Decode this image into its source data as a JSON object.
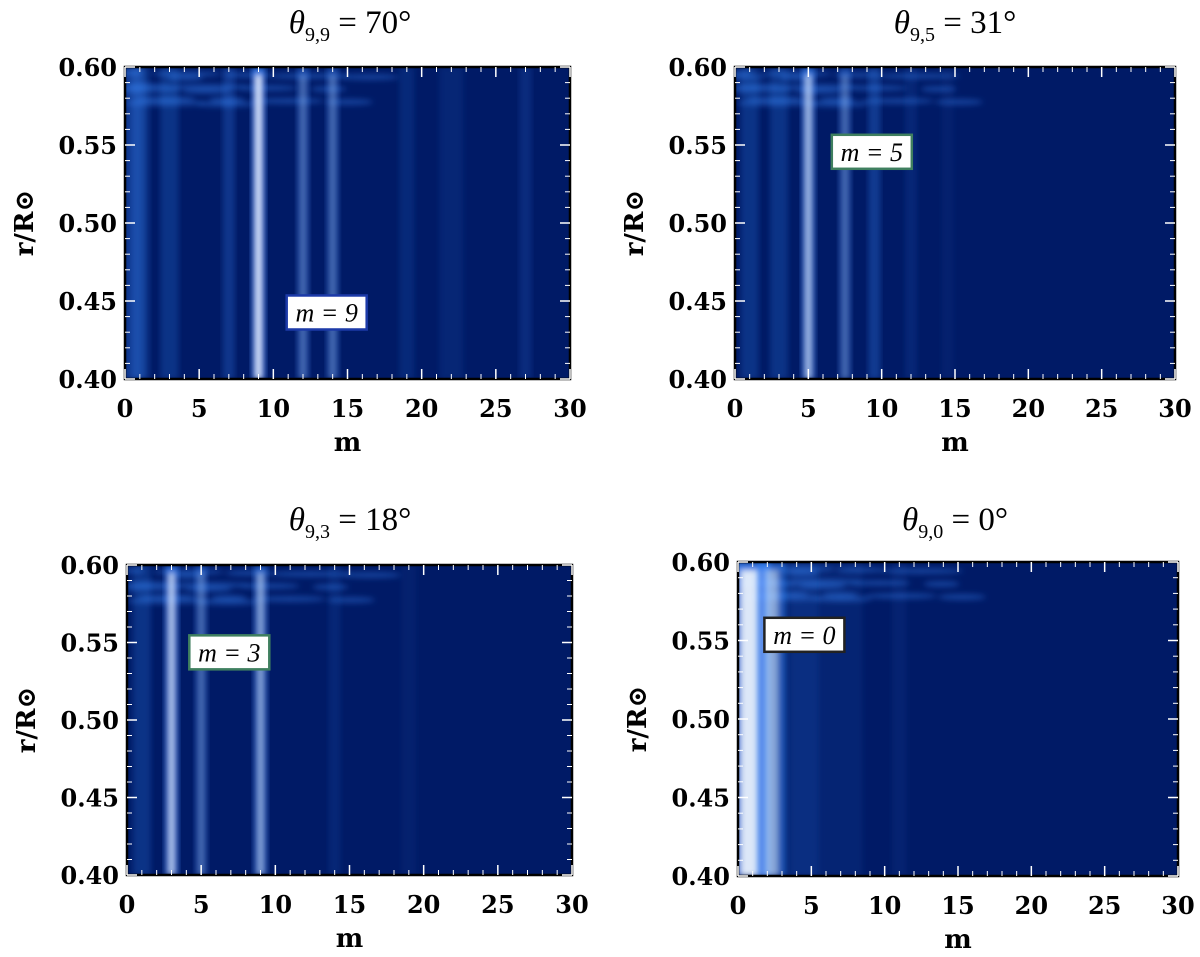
{
  "chart_data": [
    {
      "type": "heatmap",
      "title": {
        "sym": "θ",
        "sub": "9,9",
        "rest": " = 70°"
      },
      "xlabel": "m",
      "ylabel": "r/R⊙",
      "xlim": [
        0,
        30
      ],
      "ylim": [
        0.4,
        0.6
      ],
      "xticks": [
        "0",
        "5",
        "10",
        "15",
        "20",
        "25",
        "30"
      ],
      "yticks": [
        "0.40",
        "0.45",
        "0.50",
        "0.55",
        "0.60"
      ],
      "annotation": {
        "text": "m = 9",
        "m": 10.9,
        "r": 0.442,
        "border": "#1c3aa8"
      },
      "bands": [
        {
          "m": 0.5,
          "intensity": 0.35,
          "width": 0.7
        },
        {
          "m": 1.0,
          "intensity": 0.4,
          "width": 0.6
        },
        {
          "m": 3.0,
          "intensity": 0.3,
          "width": 0.6
        },
        {
          "m": 7.0,
          "intensity": 0.35,
          "width": 0.4
        },
        {
          "m": 9.0,
          "intensity": 1.0,
          "width": 0.45
        },
        {
          "m": 12.0,
          "intensity": 0.5,
          "width": 0.35
        },
        {
          "m": 14.0,
          "intensity": 0.5,
          "width": 0.35
        },
        {
          "m": 19.0,
          "intensity": 0.18,
          "width": 0.5
        },
        {
          "m": 22.0,
          "intensity": 0.14,
          "width": 0.8
        },
        {
          "m": 27.0,
          "intensity": 0.22,
          "width": 0.35
        }
      ]
    },
    {
      "type": "heatmap",
      "title": {
        "sym": "θ",
        "sub": "9,5",
        "rest": " = 31°"
      },
      "xlabel": "m",
      "ylabel": "r/R⊙",
      "xlim": [
        0,
        30
      ],
      "ylim": [
        0.4,
        0.6
      ],
      "xticks": [
        "0",
        "5",
        "10",
        "15",
        "20",
        "25",
        "30"
      ],
      "yticks": [
        "0.40",
        "0.45",
        "0.50",
        "0.55",
        "0.60"
      ],
      "annotation": {
        "text": "m = 5",
        "m": 6.6,
        "r": 0.545,
        "border": "#3f7f5f"
      },
      "bands": [
        {
          "m": 1.0,
          "intensity": 0.3,
          "width": 0.6
        },
        {
          "m": 3.0,
          "intensity": 0.3,
          "width": 0.6
        },
        {
          "m": 5.0,
          "intensity": 0.8,
          "width": 0.45
        },
        {
          "m": 7.5,
          "intensity": 0.5,
          "width": 0.4
        },
        {
          "m": 9.5,
          "intensity": 0.4,
          "width": 0.4
        },
        {
          "m": 12.0,
          "intensity": 0.15,
          "width": 0.35
        },
        {
          "m": 14.5,
          "intensity": 0.08,
          "width": 0.4
        }
      ]
    },
    {
      "type": "heatmap",
      "title": {
        "sym": "θ",
        "sub": "9,3",
        "rest": " = 18°"
      },
      "xlabel": "m",
      "ylabel": "r/R⊙",
      "xlim": [
        0,
        30
      ],
      "ylim": [
        0.4,
        0.6
      ],
      "xticks": [
        "0",
        "5",
        "10",
        "15",
        "20",
        "25",
        "30"
      ],
      "yticks": [
        "0.40",
        "0.45",
        "0.50",
        "0.55",
        "0.60"
      ],
      "annotation": {
        "text": "m = 3",
        "m": 4.2,
        "r": 0.543,
        "border": "#3f7f5f"
      },
      "bands": [
        {
          "m": 1.0,
          "intensity": 0.3,
          "width": 0.6
        },
        {
          "m": 3.0,
          "intensity": 0.85,
          "width": 0.45
        },
        {
          "m": 5.0,
          "intensity": 0.5,
          "width": 0.4
        },
        {
          "m": 9.0,
          "intensity": 0.7,
          "width": 0.45
        },
        {
          "m": 14.0,
          "intensity": 0.15,
          "width": 0.4
        },
        {
          "m": 19.0,
          "intensity": 0.08,
          "width": 0.5
        }
      ]
    },
    {
      "type": "heatmap",
      "title": {
        "sym": "θ",
        "sub": "9,0",
        "rest": " = 0°"
      },
      "xlabel": "m",
      "ylabel": "r/R⊙",
      "xlim": [
        0,
        30
      ],
      "ylim": [
        0.4,
        0.6
      ],
      "xticks": [
        "0",
        "5",
        "10",
        "15",
        "20",
        "25",
        "30"
      ],
      "yticks": [
        "0.40",
        "0.45",
        "0.50",
        "0.55",
        "0.60"
      ],
      "annotation": {
        "text": "m = 0",
        "m": 1.8,
        "r": 0.553,
        "border": "#222222"
      },
      "bands": [
        {
          "m": 0.8,
          "intensity": 1.0,
          "width": 1.4
        },
        {
          "m": 2.3,
          "intensity": 0.7,
          "width": 1.0
        },
        {
          "m": 4.5,
          "intensity": 0.25,
          "width": 1.0
        },
        {
          "m": 7.0,
          "intensity": 0.12,
          "width": 1.5
        },
        {
          "m": 11.0,
          "intensity": 0.1,
          "width": 0.5
        }
      ]
    }
  ],
  "colors": {
    "background": "#001a66",
    "glow": "#3a8cff",
    "peak": "#ffffff",
    "frame": "#000000"
  }
}
